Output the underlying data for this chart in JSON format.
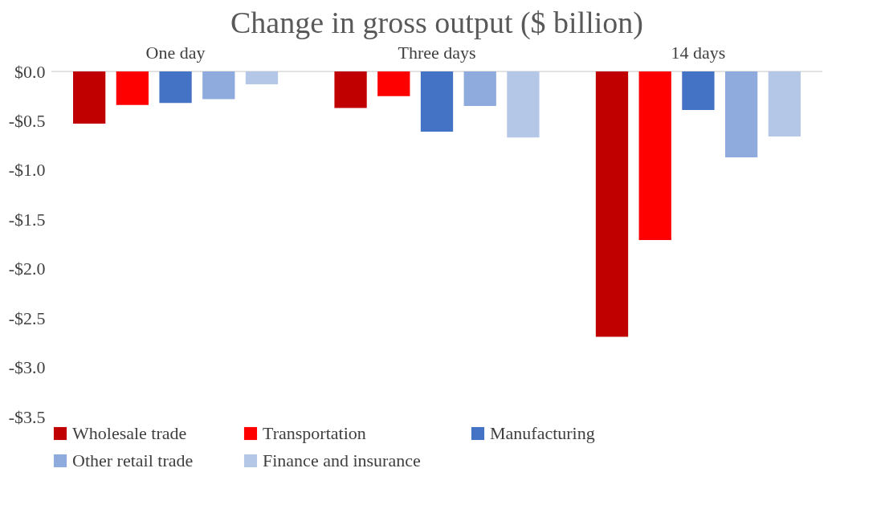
{
  "chart_data": {
    "type": "bar",
    "title": "Change in gross output ($ billion)",
    "categories": [
      "One day",
      "Three days",
      "14 days"
    ],
    "series": [
      {
        "name": "Wholesale trade",
        "color": "#c00000",
        "values": [
          -0.53,
          -0.37,
          -2.69
        ]
      },
      {
        "name": "Transportation",
        "color": "#ff0000",
        "values": [
          -0.34,
          -0.25,
          -1.71
        ]
      },
      {
        "name": "Manufacturing",
        "color": "#4472c4",
        "values": [
          -0.32,
          -0.61,
          -0.39
        ]
      },
      {
        "name": "Other retail trade",
        "color": "#8faadc",
        "values": [
          -0.28,
          -0.35,
          -0.87
        ]
      },
      {
        "name": "Finance and insurance",
        "color": "#b4c7e7",
        "values": [
          -0.13,
          -0.67,
          -0.66
        ]
      }
    ],
    "ylim": [
      -3.5,
      0
    ],
    "yticks": [
      {
        "value": 0,
        "label": "$0.0"
      },
      {
        "value": -0.5,
        "label": "-$0.5"
      },
      {
        "value": -1,
        "label": "-$1.0"
      },
      {
        "value": -1.5,
        "label": "-$1.5"
      },
      {
        "value": -2,
        "label": "-$2.0"
      },
      {
        "value": -2.5,
        "label": "-$2.5"
      },
      {
        "value": -3,
        "label": "-$3.0"
      },
      {
        "value": -3.5,
        "label": "-$3.5"
      }
    ],
    "grid": false,
    "legend": "bottom"
  }
}
